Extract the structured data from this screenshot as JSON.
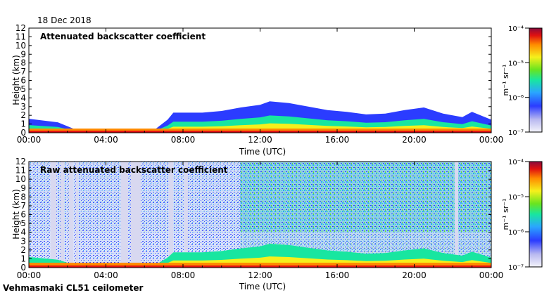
{
  "figure": {
    "date": "18 Dec 2018",
    "instrument": "Vehmasmaki CL51 ceilometer"
  },
  "chart_data": [
    {
      "type": "heatmap",
      "title": "Attenuated backscatter coefficient",
      "xlabel": "Time (UTC)",
      "ylabel": "Height (km)",
      "x_ticks": [
        "00:00",
        "04:00",
        "08:00",
        "12:00",
        "16:00",
        "20:00",
        "00:00"
      ],
      "y_ticks": [
        "0",
        "1",
        "2",
        "3",
        "4",
        "5",
        "6",
        "7",
        "8",
        "9",
        "10",
        "11",
        "12"
      ],
      "xlim_hours": [
        0,
        24
      ],
      "ylim_km": [
        0,
        12
      ],
      "colorbar": {
        "label": "m⁻¹ sr⁻¹",
        "scale": "log",
        "range": [
          1e-07,
          0.0001
        ],
        "ticks": [
          "10⁻⁴",
          "10⁻⁵",
          "10⁻⁶",
          "10⁻⁷"
        ]
      },
      "signal_top_km": [
        [
          0.0,
          1.6
        ],
        [
          1.5,
          1.2
        ],
        [
          2.5,
          0.3
        ],
        [
          4.0,
          0.2
        ],
        [
          6.5,
          0.3
        ],
        [
          7.2,
          1.5
        ],
        [
          7.5,
          2.3
        ],
        [
          9.0,
          2.3
        ],
        [
          10.0,
          2.5
        ],
        [
          11.0,
          2.9
        ],
        [
          12.0,
          3.2
        ],
        [
          12.5,
          3.6
        ],
        [
          13.5,
          3.4
        ],
        [
          14.5,
          3.0
        ],
        [
          15.5,
          2.6
        ],
        [
          16.5,
          2.4
        ],
        [
          17.5,
          2.1
        ],
        [
          18.5,
          2.2
        ],
        [
          19.5,
          2.6
        ],
        [
          20.5,
          2.9
        ],
        [
          21.5,
          2.2
        ],
        [
          22.5,
          1.8
        ],
        [
          23.0,
          2.4
        ],
        [
          24.0,
          1.5
        ]
      ]
    },
    {
      "type": "heatmap",
      "title": "Raw attenuated backscatter coefficient",
      "xlabel": "Time (UTC)",
      "ylabel": "Height (km)",
      "x_ticks": [
        "00:00",
        "04:00",
        "08:00",
        "12:00",
        "16:00",
        "20:00",
        "00:00"
      ],
      "y_ticks": [
        "0",
        "1",
        "2",
        "3",
        "4",
        "5",
        "6",
        "7",
        "8",
        "9",
        "10",
        "11",
        "12"
      ],
      "xlim_hours": [
        0,
        24
      ],
      "ylim_km": [
        0,
        12
      ],
      "colorbar": {
        "label": "m⁻¹ sr⁻¹",
        "scale": "log",
        "range": [
          1e-07,
          0.0001
        ],
        "ticks": [
          "10⁻⁴",
          "10⁻⁵",
          "10⁻⁶",
          "10⁻⁷"
        ]
      }
    }
  ],
  "colors": {
    "colormap": [
      "#f4f4fb",
      "#b9b9f0",
      "#2b3cff",
      "#2aa5ff",
      "#18e6a0",
      "#69e41f",
      "#f5f01c",
      "#ff8c00",
      "#e01010",
      "#8a0a3c"
    ]
  }
}
